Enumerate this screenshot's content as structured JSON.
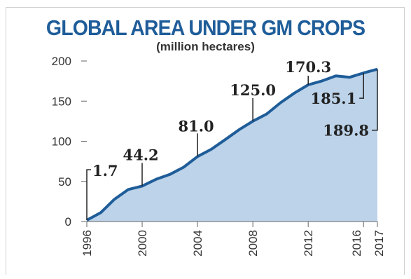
{
  "chart_data": {
    "type": "area",
    "title": "GLOBAL AREA UNDER GM CROPS",
    "subtitle": "(million hectares)",
    "xlabel": "",
    "ylabel": "",
    "xlim": [
      1996,
      2017
    ],
    "ylim": [
      0,
      200
    ],
    "y_ticks": [
      "0",
      "50",
      "100",
      "150",
      "200"
    ],
    "x_ticks": [
      "1996",
      "2000",
      "2004",
      "2008",
      "2012",
      "2016",
      "2017"
    ],
    "grid": false,
    "colors": {
      "area": "#bcd3ea",
      "line": "#1f5d99",
      "title": "#1f5d99"
    },
    "series": [
      {
        "x": [
          1996,
          1997,
          1998,
          1999,
          2000,
          2001,
          2002,
          2003,
          2004,
          2005,
          2006,
          2007,
          2008,
          2009,
          2010,
          2011,
          2012,
          2013,
          2014,
          2015,
          2016,
          2017
        ],
        "values": [
          1.7,
          11,
          27.8,
          39.9,
          44.2,
          52.6,
          58.7,
          67.7,
          81.0,
          90.0,
          102.0,
          114.3,
          125.0,
          134.0,
          148.0,
          160.0,
          170.3,
          175.2,
          181.5,
          179.7,
          185.1,
          189.8
        ]
      }
    ],
    "annotations": [
      {
        "x": 1996,
        "y": 1.7,
        "label": "1.7"
      },
      {
        "x": 2000,
        "y": 44.2,
        "label": "44.2"
      },
      {
        "x": 2004,
        "y": 81.0,
        "label": "81.0"
      },
      {
        "x": 2008,
        "y": 125.0,
        "label": "125.0"
      },
      {
        "x": 2012,
        "y": 170.3,
        "label": "170.3"
      },
      {
        "x": 2016,
        "y": 185.1,
        "label": "185.1"
      },
      {
        "x": 2017,
        "y": 189.8,
        "label": "189.8"
      }
    ]
  }
}
